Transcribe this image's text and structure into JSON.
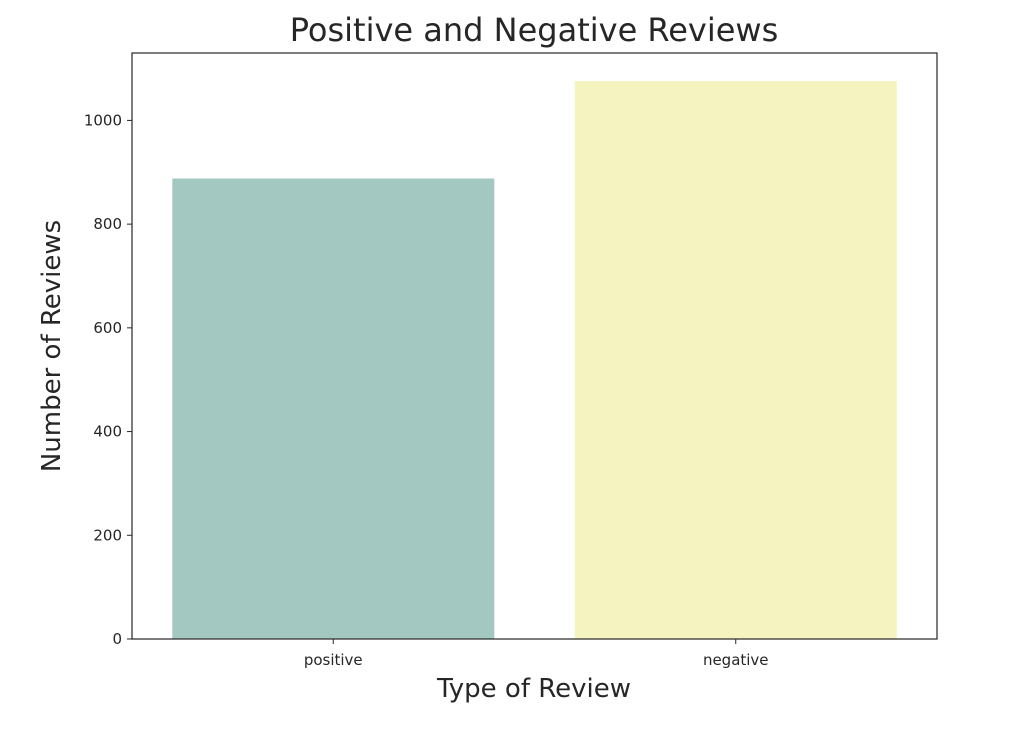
{
  "chart_data": {
    "type": "bar",
    "title": "Positive and Negative Reviews",
    "xlabel": "Type of Review",
    "ylabel": "Number of Reviews",
    "categories": [
      "positive",
      "negative"
    ],
    "values": [
      888,
      1076
    ],
    "colors": [
      "#a3c8c1",
      "#f5f4c1"
    ],
    "ylim": [
      0,
      1130
    ],
    "yticks": [
      0,
      200,
      400,
      600,
      800,
      1000
    ],
    "grid": false,
    "legend": "none"
  }
}
